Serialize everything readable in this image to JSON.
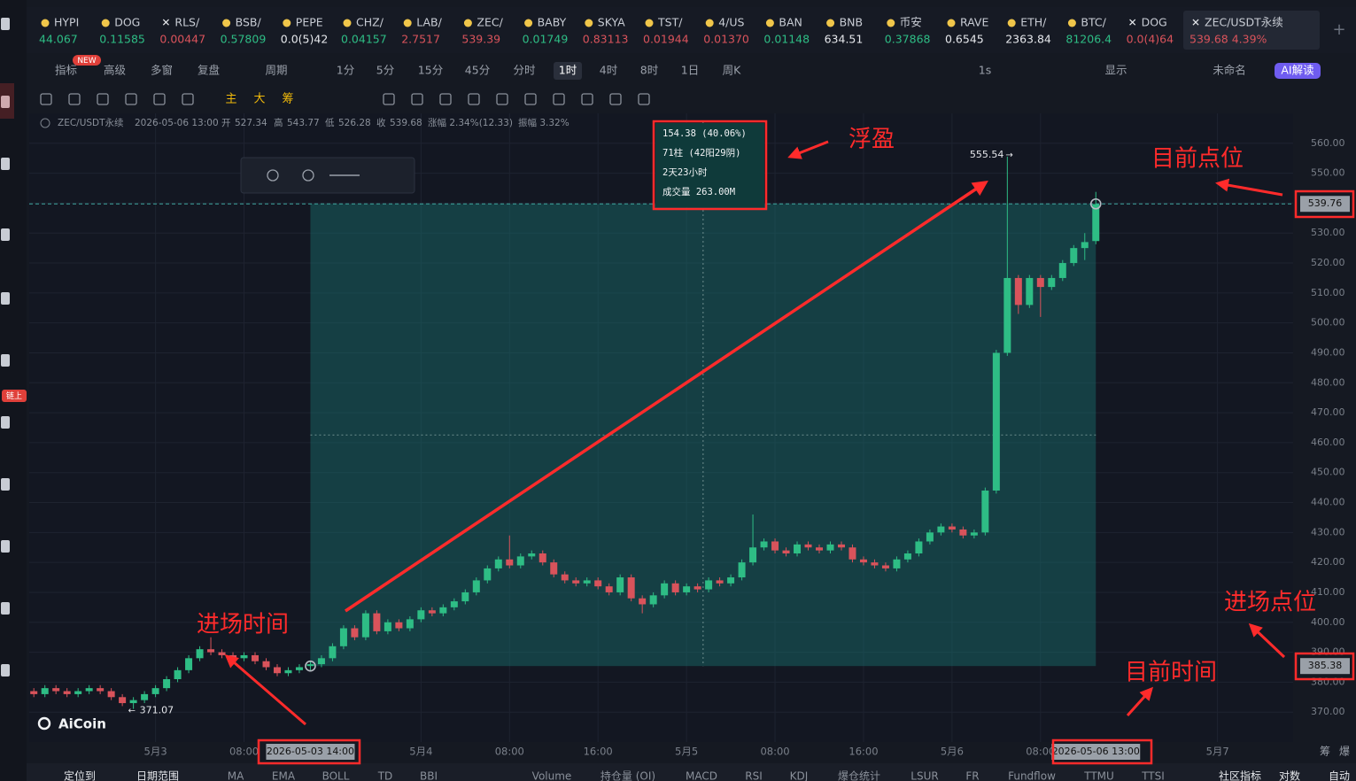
{
  "ui": {
    "tickers": [
      {
        "name": "HYPI",
        "price": "44.067",
        "color": "#2ebd85"
      },
      {
        "name": "DOG",
        "price": "0.11585",
        "color": "#2ebd85"
      },
      {
        "name": "RLS/",
        "price": "0.00447",
        "color": "#d9535b"
      },
      {
        "name": "BSB/",
        "price": "0.57809",
        "color": "#2ebd85"
      },
      {
        "name": "PEPE",
        "price": "0.0(5)42",
        "color": "#e6e8ec"
      },
      {
        "name": "CHZ/",
        "price": "0.04157",
        "color": "#2ebd85"
      },
      {
        "name": "LAB/",
        "price": "2.7517",
        "color": "#d9535b"
      },
      {
        "name": "ZEC/",
        "price": "539.39",
        "color": "#d9535b"
      },
      {
        "name": "BABY",
        "price": "0.01749",
        "color": "#2ebd85"
      },
      {
        "name": "SKYA",
        "price": "0.83113",
        "color": "#d9535b"
      },
      {
        "name": "TST/",
        "price": "0.01944",
        "color": "#d9535b"
      },
      {
        "name": "4/US",
        "price": "0.01370",
        "color": "#d9535b"
      },
      {
        "name": "BAN",
        "price": "0.01148",
        "color": "#2ebd85"
      },
      {
        "name": "BNB",
        "price": "634.51",
        "color": "#e6e8ec"
      },
      {
        "name": "币安",
        "price": "0.37868",
        "color": "#2ebd85"
      },
      {
        "name": "RAVE",
        "price": "0.6545",
        "color": "#e6e8ec"
      },
      {
        "name": "ETH/",
        "price": "2363.84",
        "color": "#e6e8ec"
      },
      {
        "name": "BTC/",
        "price": "81206.4",
        "color": "#2ebd85"
      },
      {
        "name": "DOG",
        "price": "0.0(4)64",
        "color": "#d9535b"
      },
      {
        "name": "ZEC/USDT永续",
        "price": "539.68 4.39%",
        "color": "#d9535b"
      }
    ],
    "new_badge": "NEW",
    "toolbar": [
      "指标",
      "高级",
      "多窗",
      "复盘",
      "周期",
      "1分",
      "5分",
      "15分",
      "45分",
      "分时",
      "1时",
      "4时",
      "8时",
      "1日",
      "周K",
      "1s",
      "显示",
      "未命名",
      "AI解读"
    ],
    "drawing_tools": [
      "主",
      "大",
      "筹"
    ],
    "header": {
      "symbol": "ZEC/USDT永续",
      "time": "2026-05-06 13:00",
      "open": "开",
      "high": "高",
      "low": "低",
      "close": "收",
      "change": "涨幅 2.34%(12.33)",
      "amplitude": "振幅 3.32%"
    },
    "tooltip": [
      "154.38 (40.06%)",
      "71柱 (42阳29阴)",
      "2天23小时",
      "成交量 263.00M"
    ],
    "logo": "AiCoin",
    "sidebar_badge": "链上",
    "corner": [
      "筹",
      "爆"
    ],
    "bottom_bar": [
      "定位到",
      "日期范围",
      "MA",
      "EMA",
      "BOLL",
      "TD",
      "BBI",
      "Volume",
      "持仓量 (OI)",
      "MACD",
      "RSI",
      "KDJ",
      "爆仓统计",
      "LSUR",
      "FR",
      "Fundflow",
      "TTMU",
      "TTSI",
      "社区指标",
      "对数",
      "自动"
    ]
  },
  "chart_data": {
    "type": "candlestick",
    "up_color": "#2ebd85",
    "down_color": "#d9535b",
    "x": [
      "2026-05-02 13:00",
      "2026-05-02 14:00",
      "2026-05-02 15:00",
      "2026-05-02 16:00",
      "2026-05-02 17:00",
      "2026-05-02 18:00",
      "2026-05-02 19:00",
      "2026-05-02 20:00",
      "2026-05-02 21:00",
      "2026-05-02 22:00",
      "2026-05-02 23:00",
      "2026-05-03 00:00",
      "2026-05-03 01:00",
      "2026-05-03 02:00",
      "2026-05-03 03:00",
      "2026-05-03 04:00",
      "2026-05-03 05:00",
      "2026-05-03 06:00",
      "2026-05-03 07:00",
      "2026-05-03 08:00",
      "2026-05-03 09:00",
      "2026-05-03 10:00",
      "2026-05-03 11:00",
      "2026-05-03 12:00",
      "2026-05-03 13:00",
      "2026-05-03 14:00",
      "2026-05-03 15:00",
      "2026-05-03 16:00",
      "2026-05-03 17:00",
      "2026-05-03 18:00",
      "2026-05-03 19:00",
      "2026-05-03 20:00",
      "2026-05-03 21:00",
      "2026-05-03 22:00",
      "2026-05-03 23:00",
      "2026-05-04 00:00",
      "2026-05-04 01:00",
      "2026-05-04 02:00",
      "2026-05-04 03:00",
      "2026-05-04 04:00",
      "2026-05-04 05:00",
      "2026-05-04 06:00",
      "2026-05-04 07:00",
      "2026-05-04 08:00",
      "2026-05-04 09:00",
      "2026-05-04 10:00",
      "2026-05-04 11:00",
      "2026-05-04 12:00",
      "2026-05-04 13:00",
      "2026-05-04 14:00",
      "2026-05-04 15:00",
      "2026-05-04 16:00",
      "2026-05-04 17:00",
      "2026-05-04 18:00",
      "2026-05-04 19:00",
      "2026-05-04 20:00",
      "2026-05-04 21:00",
      "2026-05-04 22:00",
      "2026-05-04 23:00",
      "2026-05-05 00:00",
      "2026-05-05 01:00",
      "2026-05-05 02:00",
      "2026-05-05 03:00",
      "2026-05-05 04:00",
      "2026-05-05 05:00",
      "2026-05-05 06:00",
      "2026-05-05 07:00",
      "2026-05-05 08:00",
      "2026-05-05 09:00",
      "2026-05-05 10:00",
      "2026-05-05 11:00",
      "2026-05-05 12:00",
      "2026-05-05 13:00",
      "2026-05-05 14:00",
      "2026-05-05 15:00",
      "2026-05-05 16:00",
      "2026-05-05 17:00",
      "2026-05-05 18:00",
      "2026-05-05 19:00",
      "2026-05-05 20:00",
      "2026-05-05 21:00",
      "2026-05-05 22:00",
      "2026-05-05 23:00",
      "2026-05-06 00:00",
      "2026-05-06 01:00",
      "2026-05-06 02:00",
      "2026-05-06 03:00",
      "2026-05-06 04:00",
      "2026-05-06 05:00",
      "2026-05-06 06:00",
      "2026-05-06 07:00",
      "2026-05-06 08:00",
      "2026-05-06 09:00",
      "2026-05-06 10:00",
      "2026-05-06 11:00",
      "2026-05-06 12:00",
      "2026-05-06 13:00"
    ],
    "open": [
      377,
      376,
      378,
      377,
      376,
      377,
      378,
      377,
      375,
      373,
      374,
      376,
      378,
      381,
      384,
      388,
      391,
      390,
      389,
      388,
      389,
      387,
      385,
      383,
      384,
      385.38,
      386,
      388,
      392,
      398,
      395,
      403,
      397,
      400,
      398,
      401,
      404,
      403,
      405,
      407,
      410,
      414,
      418,
      421,
      419,
      422,
      423,
      420,
      416,
      414,
      413,
      414,
      412,
      410,
      415,
      408,
      406,
      409,
      413,
      410,
      412,
      411,
      414,
      413,
      415,
      420,
      425,
      427,
      424,
      423,
      426,
      425,
      424,
      426,
      425,
      421,
      420,
      419,
      418,
      421,
      423,
      427,
      430,
      432,
      431,
      429,
      430,
      444,
      490,
      515,
      506,
      515,
      512,
      515,
      520,
      525,
      527.34
    ],
    "high": [
      378,
      379,
      379,
      378,
      378,
      379,
      379,
      378,
      376,
      375,
      377,
      379,
      382,
      385,
      389,
      392,
      395,
      391,
      390,
      390,
      390,
      388,
      386,
      385,
      386,
      387,
      389,
      393,
      399,
      399,
      404,
      404,
      401,
      401,
      402,
      405,
      405,
      406,
      408,
      411,
      415,
      419,
      422,
      429,
      423,
      424,
      424,
      421,
      417,
      415,
      415,
      415,
      413,
      416,
      416,
      409,
      410,
      414,
      414,
      413,
      413,
      415,
      415,
      416,
      421,
      436,
      428,
      428,
      425,
      427,
      427,
      426,
      427,
      427,
      426,
      422,
      421,
      420,
      422,
      424,
      428,
      431,
      433,
      433,
      432,
      431,
      445,
      491,
      555.54,
      516,
      516,
      516,
      516,
      521,
      526,
      530,
      543.77
    ],
    "low": [
      375,
      375,
      376,
      375,
      375,
      376,
      376,
      374,
      372,
      371.07,
      373,
      375,
      377,
      380,
      383,
      387,
      389,
      388,
      387,
      387,
      386,
      384,
      382,
      382,
      383,
      384,
      385,
      387,
      391,
      394,
      394,
      396,
      396,
      397,
      397,
      400,
      402,
      402,
      404,
      406,
      409,
      413,
      417,
      418,
      418,
      421,
      419,
      415,
      413,
      412,
      412,
      411,
      409,
      409,
      407,
      403,
      405,
      408,
      409,
      409,
      410,
      410,
      412,
      412,
      414,
      419,
      424,
      423,
      422,
      422,
      424,
      423,
      423,
      424,
      420,
      419,
      418,
      417,
      417,
      420,
      422,
      426,
      429,
      430,
      428,
      428,
      429,
      443,
      489,
      503,
      505,
      502,
      511,
      514,
      519,
      521,
      526.28
    ],
    "close": [
      376,
      378,
      377,
      376,
      377,
      378,
      377,
      375,
      373,
      374,
      376,
      378,
      381,
      384,
      388,
      391,
      390,
      389,
      388,
      389,
      387,
      385,
      383,
      384,
      385,
      386,
      388,
      392,
      398,
      395,
      403,
      397,
      400,
      398,
      401,
      404,
      403,
      405,
      407,
      410,
      414,
      418,
      421,
      419,
      422,
      423,
      420,
      416,
      414,
      413,
      414,
      412,
      410,
      415,
      408,
      406,
      409,
      413,
      410,
      412,
      411,
      414,
      413,
      415,
      420,
      425,
      427,
      424,
      423,
      426,
      425,
      424,
      426,
      425,
      421,
      420,
      419,
      418,
      421,
      423,
      427,
      430,
      432,
      431,
      429,
      430,
      444,
      490,
      515,
      506,
      515,
      512,
      515,
      520,
      525,
      527,
      539.68
    ],
    "xlim": [
      "2026-05-02 12:35",
      "2026-05-07 06:50"
    ],
    "xticks": [
      {
        "value": "2026-05-03 00:00",
        "label": "5月3"
      },
      {
        "value": "2026-05-03 08:00",
        "label": "08:00"
      },
      {
        "value": "2026-05-04 00:00",
        "label": "5月4"
      },
      {
        "value": "2026-05-04 08:00",
        "label": "08:00"
      },
      {
        "value": "2026-05-04 16:00",
        "label": "16:00"
      },
      {
        "value": "2026-05-05 00:00",
        "label": "5月5"
      },
      {
        "value": "2026-05-05 08:00",
        "label": "08:00"
      },
      {
        "value": "2026-05-05 16:00",
        "label": "16:00"
      },
      {
        "value": "2026-05-06 00:00",
        "label": "5月6"
      },
      {
        "value": "2026-05-06 08:00",
        "label": "08:00"
      },
      {
        "value": "2026-05-07 00:00",
        "label": "5月7"
      }
    ],
    "ylim": [
      360,
      570
    ],
    "yticks": [
      {
        "value": 370,
        "label": "370.00"
      },
      {
        "value": 380,
        "label": "380.00"
      },
      {
        "value": 390,
        "label": "390.00"
      },
      {
        "value": 400,
        "label": "400.00"
      },
      {
        "value": 410,
        "label": "410.00"
      },
      {
        "value": 420,
        "label": "420.00"
      },
      {
        "value": 430,
        "label": "430.00"
      },
      {
        "value": 440,
        "label": "440.00"
      },
      {
        "value": 450,
        "label": "450.00"
      },
      {
        "value": 460,
        "label": "460.00"
      },
      {
        "value": 470,
        "label": "470.00"
      },
      {
        "value": 480,
        "label": "480.00"
      },
      {
        "value": 490,
        "label": "490.00"
      },
      {
        "value": 500,
        "label": "500.00"
      },
      {
        "value": 510,
        "label": "510.00"
      },
      {
        "value": 520,
        "label": "520.00"
      },
      {
        "value": 530,
        "label": "530.00"
      },
      {
        "value": 540,
        "label": "540.00"
      },
      {
        "value": 550,
        "label": "550.00"
      },
      {
        "value": 560,
        "label": "560.00"
      }
    ],
    "grid": true,
    "position": {
      "entry_time": "2026-05-03 14:00",
      "entry_price": 385.38,
      "current_time": "2026-05-06 13:00",
      "current_price": 539.76,
      "color": "rgba(24,120,116,0.42)",
      "line_color": "#3fa7a0"
    },
    "annotations": {
      "profit": "浮盈",
      "current_price": "目前点位",
      "entry_price": "进场点位",
      "entry_time": "进场时间",
      "current_time": "目前时间",
      "color": "#ff2b2b"
    }
  }
}
